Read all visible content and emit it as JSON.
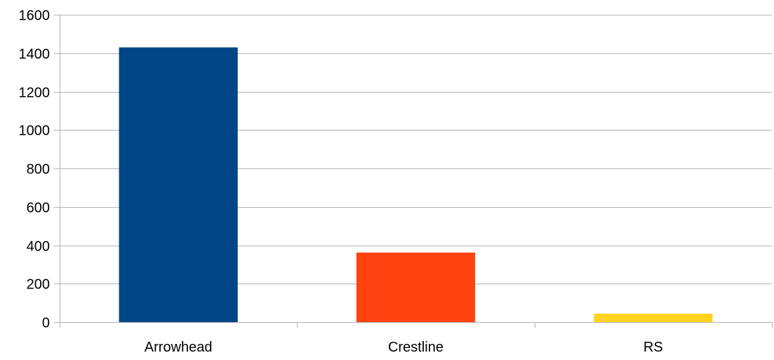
{
  "chart_data": {
    "type": "bar",
    "title": "",
    "xlabel": "",
    "ylabel": "",
    "categories": [
      "Arrowhead",
      "Crestline",
      "RS"
    ],
    "values": [
      1430,
      362,
      44
    ],
    "colors": [
      "#004586",
      "#ff420e",
      "#ffd320"
    ],
    "ylim": [
      0,
      1600
    ],
    "yticks": [
      {
        "value": 0,
        "label": "0"
      },
      {
        "value": 200,
        "label": "200"
      },
      {
        "value": 400,
        "label": "400"
      },
      {
        "value": 600,
        "label": "600"
      },
      {
        "value": 800,
        "label": "800"
      },
      {
        "value": 1000,
        "label": "1000"
      },
      {
        "value": 1200,
        "label": "1200"
      },
      {
        "value": 1400,
        "label": "1400"
      },
      {
        "value": 1600,
        "label": "1600"
      }
    ],
    "grid": true,
    "legend": "none",
    "gridline_color": "#b3b3b3"
  }
}
